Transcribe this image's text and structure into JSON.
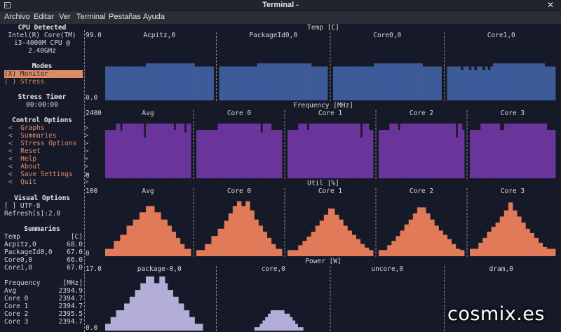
{
  "window": {
    "title": "Terminal -",
    "close_glyph": "✕"
  },
  "menu": {
    "items": [
      "Archivo",
      "Editar",
      "Ver",
      "Terminal",
      "Pestañas",
      "Ayuda"
    ]
  },
  "sidebar": {
    "cpu_title": "CPU Detected",
    "cpu_lines": [
      "Intel(R) Core(TM)",
      "i3-4000M CPU @",
      "2.40GHz"
    ],
    "modes_title": "Modes",
    "mode_monitor": "(X) Monitor",
    "mode_stress": "( ) Stress",
    "stress_timer_title": "Stress Timer",
    "stress_timer_value": "00:00:00",
    "control_title": "Control Options",
    "control_items": [
      "<  Graphs          >",
      "<  Summaries       >",
      "<  Stress Options  >",
      "<  Reset           >",
      "<  Help            >",
      "<  About           >",
      "<  Save Settings   >",
      "<  Quit            >"
    ],
    "visual_title": "Visual Options",
    "visual_utf8": "[ ] UTF-8",
    "visual_refresh": "Refresh[s]:2.0",
    "summaries_title": "Summaries",
    "temp_block": [
      {
        "label": "Temp",
        "value": "[C]"
      },
      {
        "label": "Acpitz,0",
        "value": "68.0"
      },
      {
        "label": "PackageId0,0",
        "value": "67.0"
      },
      {
        "label": "Core0,0",
        "value": "66.0"
      },
      {
        "label": "Core1,0",
        "value": "67.0"
      }
    ],
    "freq_block": [
      {
        "label": "Frequency",
        "value": "[MHz]"
      },
      {
        "label": "Avg",
        "value": "2394.9"
      },
      {
        "label": "Core 0",
        "value": "2394.7"
      },
      {
        "label": "Core 1",
        "value": "2394.7"
      },
      {
        "label": "Core 2",
        "value": "2395.5"
      },
      {
        "label": "Core 3",
        "value": "2394.7"
      }
    ]
  },
  "graphs": [
    {
      "title": "Temp [C]",
      "y_top_label": "99.0",
      "y_bottom_label": "0.0",
      "color": "#3d5a99",
      "y_min": 0,
      "y_max": 99,
      "series": [
        {
          "name": "Acpitz,0",
          "values": [
            55,
            55,
            55,
            55,
            55,
            55,
            55,
            55,
            55,
            55,
            55,
            55,
            55,
            55,
            55,
            60,
            60,
            60,
            60,
            60,
            60,
            60,
            60,
            60,
            60,
            60,
            60,
            60,
            60,
            60,
            60,
            60,
            60,
            55,
            55,
            55,
            55,
            55,
            55,
            55
          ]
        },
        {
          "name": "PackageId0,0",
          "values": [
            55,
            55,
            55,
            55,
            55,
            55,
            55,
            55,
            55,
            55,
            55,
            55,
            55,
            55,
            60,
            60,
            60,
            60,
            60,
            60,
            60,
            60,
            60,
            60,
            60,
            60,
            60,
            60,
            60,
            60,
            60,
            60,
            60,
            60,
            55,
            55,
            55,
            55,
            55,
            55
          ]
        },
        {
          "name": "Core0,0",
          "values": [
            55,
            55,
            55,
            55,
            55,
            55,
            55,
            55,
            55,
            55,
            55,
            55,
            55,
            55,
            55,
            60,
            60,
            60,
            60,
            60,
            60,
            60,
            60,
            60,
            60,
            60,
            60,
            60,
            60,
            60,
            60,
            60,
            60,
            55,
            55,
            55,
            55,
            55,
            55,
            55
          ]
        },
        {
          "name": "Core1,0",
          "values": [
            55,
            55,
            55,
            55,
            55,
            49,
            55,
            55,
            49,
            55,
            49,
            55,
            55,
            49,
            55,
            49,
            55,
            60,
            60,
            60,
            60,
            60,
            60,
            60,
            60,
            60,
            60,
            60,
            60,
            60,
            60,
            60,
            60,
            60,
            60,
            60,
            55,
            55,
            55,
            55
          ]
        }
      ]
    },
    {
      "title": "Frequency [MHz]",
      "y_top_label": "2400",
      "y_bottom_label": "0",
      "color": "#6a359a",
      "y_min": 0,
      "y_max": 2400,
      "series": [
        {
          "name": "Avg",
          "values": [
            1900,
            1900,
            1900,
            1900,
            1900,
            2150,
            2150,
            1850,
            2150,
            2150,
            2150,
            2150,
            2150,
            2150,
            2150,
            2150,
            2150,
            2150,
            1600,
            2150,
            2150,
            2150,
            2150,
            2150,
            2150,
            2150,
            2150,
            2150,
            2150,
            2150,
            2150,
            2150,
            1900,
            2150,
            2150,
            2150,
            2150,
            1800,
            2150,
            2150
          ]
        },
        {
          "name": "Core 0",
          "values": [
            1900,
            1900,
            1900,
            1900,
            1900,
            1900,
            1900,
            1900,
            1900,
            1900,
            2150,
            2150,
            2150,
            2150,
            2150,
            2150,
            2150,
            2150,
            2150,
            2150,
            2150,
            2150,
            2150,
            2150,
            2150,
            2150,
            2150,
            2150,
            2150,
            2150,
            1800,
            2150,
            2150,
            2150,
            2150,
            1900,
            1900,
            1900,
            1900,
            1900
          ]
        },
        {
          "name": "Core 1",
          "values": [
            1900,
            1900,
            1900,
            1900,
            1900,
            2150,
            2150,
            2150,
            2150,
            1900,
            2150,
            2150,
            2150,
            2150,
            2150,
            2150,
            2150,
            2150,
            2150,
            2150,
            2150,
            2150,
            2150,
            2150,
            2150,
            2150,
            2150,
            2150,
            2150,
            2150,
            2150,
            2150,
            2150,
            2150,
            1600,
            2150,
            2150,
            2150,
            1900,
            1900
          ]
        },
        {
          "name": "Core 2",
          "values": [
            1900,
            1900,
            1900,
            1900,
            1900,
            2150,
            2150,
            2150,
            2150,
            1900,
            2150,
            2150,
            2150,
            2150,
            2150,
            2150,
            2150,
            2150,
            2150,
            2150,
            2150,
            2150,
            2150,
            2150,
            2150,
            2150,
            2150,
            2150,
            2150,
            2150,
            2150,
            2150,
            2150,
            2150,
            2150,
            2150,
            1600,
            2150,
            2150,
            1900
          ]
        },
        {
          "name": "Core 3",
          "values": [
            1900,
            1900,
            1900,
            1900,
            1900,
            2150,
            2150,
            2150,
            2150,
            2150,
            2150,
            2150,
            2150,
            2150,
            1900,
            1900,
            2150,
            2150,
            2150,
            2150,
            2150,
            2150,
            2150,
            2150,
            2150,
            2150,
            2150,
            2150,
            2150,
            2150,
            2150,
            2150,
            2150,
            2150,
            2150,
            2150,
            1900,
            1900,
            1900,
            1900
          ]
        }
      ]
    },
    {
      "title": "Util [%]",
      "y_top_label": "100",
      "y_bottom_label": "0",
      "color": "#e07a58",
      "y_min": 0,
      "y_max": 100,
      "series": [
        {
          "name": "Avg",
          "values": [
            12,
            12,
            12,
            12,
            25,
            25,
            25,
            35,
            35,
            35,
            50,
            50,
            50,
            60,
            60,
            60,
            72,
            72,
            72,
            82,
            82,
            82,
            82,
            72,
            72,
            72,
            60,
            60,
            60,
            50,
            50,
            40,
            40,
            30,
            30,
            20,
            20,
            12,
            12,
            12
          ]
        },
        {
          "name": "Core 0",
          "values": [
            10,
            10,
            10,
            10,
            20,
            20,
            20,
            33,
            33,
            33,
            45,
            45,
            45,
            58,
            58,
            70,
            70,
            82,
            82,
            90,
            90,
            82,
            82,
            90,
            90,
            75,
            75,
            60,
            60,
            50,
            50,
            40,
            40,
            30,
            30,
            20,
            20,
            12,
            12,
            12
          ]
        },
        {
          "name": "Core 1",
          "values": [
            10,
            10,
            10,
            10,
            10,
            18,
            18,
            25,
            25,
            32,
            32,
            40,
            40,
            50,
            50,
            58,
            58,
            68,
            68,
            78,
            78,
            78,
            68,
            68,
            60,
            60,
            50,
            50,
            42,
            42,
            35,
            35,
            28,
            28,
            20,
            20,
            14,
            14,
            10,
            10
          ]
        },
        {
          "name": "Core 2",
          "values": [
            10,
            10,
            10,
            10,
            18,
            18,
            25,
            25,
            33,
            33,
            42,
            42,
            52,
            52,
            60,
            60,
            70,
            70,
            80,
            80,
            80,
            80,
            70,
            70,
            60,
            60,
            50,
            50,
            42,
            42,
            35,
            35,
            28,
            28,
            20,
            20,
            12,
            12,
            10,
            10
          ]
        },
        {
          "name": "Core 3",
          "values": [
            12,
            12,
            12,
            12,
            22,
            22,
            30,
            30,
            40,
            40,
            48,
            48,
            55,
            55,
            65,
            65,
            75,
            75,
            88,
            88,
            75,
            75,
            65,
            65,
            55,
            55,
            45,
            45,
            38,
            38,
            30,
            30,
            22,
            22,
            15,
            15,
            12,
            12,
            12,
            12
          ]
        }
      ]
    },
    {
      "title": "Power [W]",
      "y_top_label": "17.0",
      "y_bottom_label": "0.0",
      "color": "#b3aed8",
      "y_min": 0,
      "y_max": 17,
      "series": [
        {
          "name": "package-0,0",
          "values": [
            2,
            2,
            4,
            4,
            6,
            6,
            6,
            8,
            8,
            10,
            10,
            12,
            12,
            14,
            14,
            16,
            16,
            16,
            14,
            14,
            16,
            16,
            14,
            12,
            12,
            10,
            10,
            8,
            8,
            6,
            6,
            4,
            4,
            2,
            2,
            2,
            0,
            0,
            0,
            0
          ]
        },
        {
          "name": "core,0",
          "values": [
            0,
            0,
            0,
            0,
            0,
            0,
            0,
            0,
            0,
            0,
            0,
            0,
            0,
            1,
            1,
            2,
            3,
            4,
            5,
            6,
            6,
            6,
            6,
            6,
            5,
            5,
            4,
            3,
            2,
            1,
            1,
            0,
            0,
            0,
            0,
            0,
            0,
            0,
            0,
            0
          ]
        },
        {
          "name": "uncore,0",
          "values": [
            0,
            0,
            0,
            0,
            0,
            0,
            0,
            0,
            0,
            0,
            0,
            0,
            0,
            0,
            0,
            0,
            0,
            0,
            0,
            0,
            0,
            0,
            0,
            0,
            0,
            0,
            0,
            0,
            0,
            0,
            0,
            0,
            0,
            0,
            0,
            0,
            0,
            0,
            0,
            0
          ]
        },
        {
          "name": "dram,0",
          "values": [
            0,
            0,
            0,
            0,
            0,
            0,
            0,
            0,
            0,
            0,
            0,
            0,
            0,
            0,
            0,
            0,
            0,
            0,
            0,
            0,
            0,
            0,
            0,
            0,
            0,
            0,
            0,
            0,
            0,
            0,
            0,
            0,
            0,
            0,
            0,
            0,
            0,
            0,
            0,
            0
          ]
        }
      ]
    }
  ],
  "watermark": "cosmix.es"
}
